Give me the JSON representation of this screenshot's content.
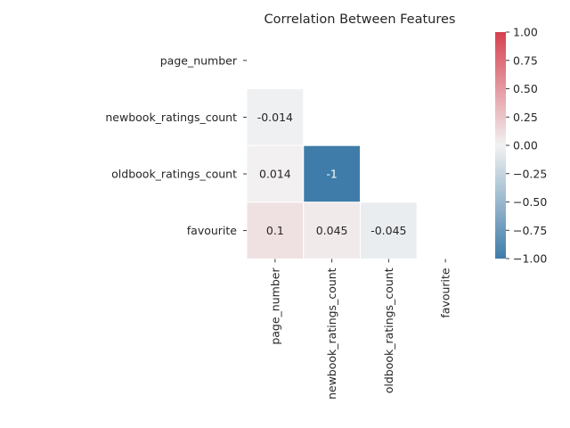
{
  "chart_data": {
    "type": "heatmap",
    "title": "Correlation Between Features",
    "xlabel": "",
    "ylabel": "",
    "row_labels": [
      "page_number",
      "newbook_ratings_count",
      "oldbook_ratings_count",
      "favourite"
    ],
    "col_labels": [
      "page_number",
      "newbook_ratings_count",
      "oldbook_ratings_count",
      "favourite"
    ],
    "mask": "upper triangle including diagonal",
    "cells": [
      {
        "row": 1,
        "col": 0,
        "value": -0.014,
        "label": "-0.014"
      },
      {
        "row": 2,
        "col": 0,
        "value": 0.014,
        "label": "0.014"
      },
      {
        "row": 2,
        "col": 1,
        "value": -1,
        "label": "-1"
      },
      {
        "row": 3,
        "col": 0,
        "value": 0.1,
        "label": "0.1"
      },
      {
        "row": 3,
        "col": 1,
        "value": 0.045,
        "label": "0.045"
      },
      {
        "row": 3,
        "col": 2,
        "value": -0.045,
        "label": "-0.045"
      }
    ],
    "colorbar": {
      "vmin": -1.0,
      "vmax": 1.0,
      "ticks": [
        1.0,
        0.75,
        0.5,
        0.25,
        0.0,
        -0.25,
        -0.5,
        -0.75,
        -1.0
      ],
      "tick_labels": [
        "1.00",
        "0.75",
        "0.50",
        "0.25",
        "0.00",
        "−0.25",
        "−0.50",
        "−0.75",
        "−1.00"
      ],
      "colors": {
        "low": "#3f7ca9",
        "mid": "#f2f2f2",
        "high": "#d6404f"
      }
    },
    "grid": false,
    "legend": "colorbar right"
  }
}
